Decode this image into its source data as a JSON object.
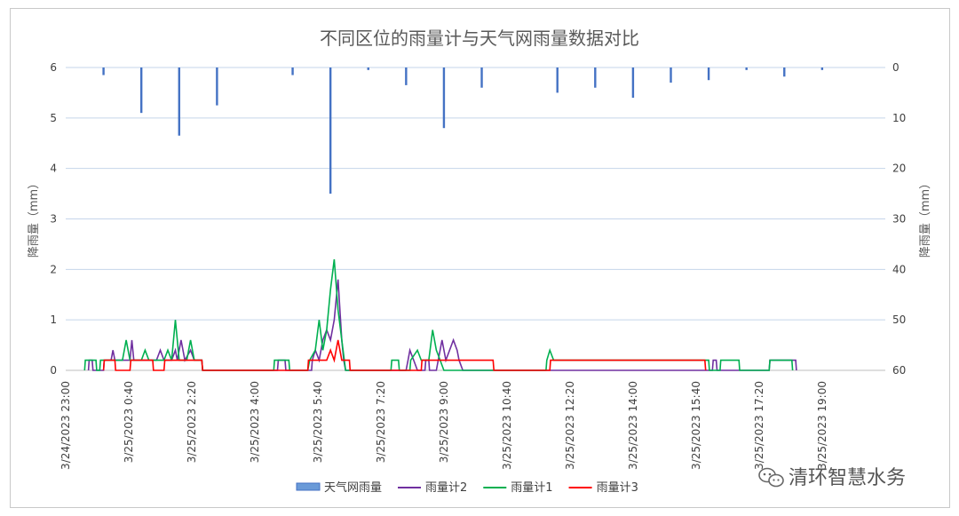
{
  "chart_data": {
    "type": "line",
    "title": "不同区位的雨量计与天气网雨量数据对比",
    "ylabel": "降雨量（mm）",
    "y2label": "降雨量（mm）",
    "ylim": [
      0,
      6
    ],
    "y2lim": [
      60,
      0
    ],
    "yticks": [
      "0",
      "1",
      "2",
      "3",
      "4",
      "5",
      "6"
    ],
    "y2ticks": [
      "60",
      "50",
      "40",
      "30",
      "20",
      "10",
      "0"
    ],
    "x_tick_labels": [
      "3/24/2023 23:00",
      "3/25/2023 0:40",
      "3/25/2023 2:20",
      "3/25/2023 4:00",
      "3/25/2023 5:40",
      "3/25/2023 7:20",
      "3/25/2023 9:00",
      "3/25/2023 10:40",
      "3/25/2023 12:20",
      "3/25/2023 14:00",
      "3/25/2023 15:40",
      "3/25/2023 17:20",
      "3/25/2023 19:00"
    ],
    "grid": true,
    "legend_position": "bottom",
    "series": [
      {
        "name": "天气网雨量",
        "kind": "bar",
        "axis": "right",
        "color": "#4472c4",
        "points": [
          [
            1.0,
            1.5
          ],
          [
            2.0,
            9
          ],
          [
            3.0,
            13.5
          ],
          [
            4.0,
            7.5
          ],
          [
            6.0,
            1.5
          ],
          [
            7.0,
            25
          ],
          [
            8.0,
            0.5
          ],
          [
            9.0,
            3.5
          ],
          [
            10.0,
            12
          ],
          [
            11.0,
            4
          ],
          [
            13.0,
            5
          ],
          [
            14.0,
            4
          ],
          [
            15.0,
            6
          ],
          [
            16.0,
            3
          ],
          [
            17.0,
            2.5
          ],
          [
            18.0,
            0.5
          ],
          [
            19.0,
            1.8
          ],
          [
            20.0,
            0.5
          ]
        ]
      },
      {
        "name": "雨量计2",
        "kind": "line",
        "axis": "left",
        "color": "#7030a0",
        "points": [
          [
            0.6,
            0
          ],
          [
            0.62,
            0.2
          ],
          [
            0.7,
            0.2
          ],
          [
            0.72,
            0
          ],
          [
            1.0,
            0
          ],
          [
            1.02,
            0.2
          ],
          [
            1.2,
            0.2
          ],
          [
            1.25,
            0.4
          ],
          [
            1.3,
            0.2
          ],
          [
            1.7,
            0.2
          ],
          [
            1.75,
            0.6
          ],
          [
            1.8,
            0.2
          ],
          [
            2.4,
            0.2
          ],
          [
            2.5,
            0.4
          ],
          [
            2.6,
            0.2
          ],
          [
            2.8,
            0.2
          ],
          [
            2.9,
            0.4
          ],
          [
            2.95,
            0.2
          ],
          [
            3.05,
            0.6
          ],
          [
            3.15,
            0.2
          ],
          [
            3.3,
            0.4
          ],
          [
            3.4,
            0.2
          ],
          [
            3.6,
            0.2
          ],
          [
            3.62,
            0
          ],
          [
            5.6,
            0
          ],
          [
            5.62,
            0.2
          ],
          [
            5.8,
            0.2
          ],
          [
            5.82,
            0
          ],
          [
            6.5,
            0
          ],
          [
            6.52,
            0.2
          ],
          [
            6.6,
            0.4
          ],
          [
            6.7,
            0.2
          ],
          [
            6.8,
            0.6
          ],
          [
            6.9,
            0.8
          ],
          [
            7.0,
            0.6
          ],
          [
            7.1,
            1.0
          ],
          [
            7.2,
            1.8
          ],
          [
            7.3,
            0.6
          ],
          [
            7.35,
            0.2
          ],
          [
            7.4,
            0
          ],
          [
            9.0,
            0
          ],
          [
            9.05,
            0.2
          ],
          [
            9.1,
            0.4
          ],
          [
            9.2,
            0.2
          ],
          [
            9.3,
            0
          ],
          [
            9.5,
            0
          ],
          [
            9.52,
            0.2
          ],
          [
            9.6,
            0.2
          ],
          [
            9.62,
            0
          ],
          [
            9.8,
            0
          ],
          [
            9.85,
            0.2
          ],
          [
            9.95,
            0.6
          ],
          [
            10.05,
            0.2
          ],
          [
            10.25,
            0.6
          ],
          [
            10.35,
            0.4
          ],
          [
            10.4,
            0.2
          ],
          [
            10.5,
            0
          ],
          [
            17.1,
            0
          ],
          [
            17.12,
            0.2
          ],
          [
            17.2,
            0.2
          ],
          [
            17.22,
            0
          ],
          [
            18.6,
            0
          ],
          [
            18.62,
            0.2
          ],
          [
            19.3,
            0.2
          ],
          [
            19.32,
            0
          ]
        ]
      },
      {
        "name": "雨量计1",
        "kind": "line",
        "axis": "left",
        "color": "#00b050",
        "points": [
          [
            0.5,
            0
          ],
          [
            0.52,
            0.2
          ],
          [
            0.8,
            0.2
          ],
          [
            0.82,
            0
          ],
          [
            0.9,
            0
          ],
          [
            0.92,
            0.2
          ],
          [
            1.5,
            0.2
          ],
          [
            1.6,
            0.6
          ],
          [
            1.7,
            0.2
          ],
          [
            2.0,
            0.2
          ],
          [
            2.1,
            0.4
          ],
          [
            2.2,
            0.2
          ],
          [
            2.6,
            0.2
          ],
          [
            2.7,
            0.4
          ],
          [
            2.8,
            0.2
          ],
          [
            2.9,
            1.0
          ],
          [
            3.0,
            0.2
          ],
          [
            3.2,
            0.2
          ],
          [
            3.3,
            0.6
          ],
          [
            3.4,
            0.2
          ],
          [
            3.6,
            0.2
          ],
          [
            3.62,
            0
          ],
          [
            5.5,
            0
          ],
          [
            5.52,
            0.2
          ],
          [
            5.9,
            0.2
          ],
          [
            5.92,
            0
          ],
          [
            6.4,
            0
          ],
          [
            6.45,
            0.2
          ],
          [
            6.6,
            0.4
          ],
          [
            6.7,
            1.0
          ],
          [
            6.8,
            0.4
          ],
          [
            6.9,
            0.8
          ],
          [
            7.0,
            1.6
          ],
          [
            7.1,
            2.2
          ],
          [
            7.2,
            1.2
          ],
          [
            7.3,
            0.6
          ],
          [
            7.4,
            0
          ],
          [
            8.6,
            0
          ],
          [
            8.62,
            0.2
          ],
          [
            8.8,
            0.2
          ],
          [
            8.82,
            0
          ],
          [
            9.1,
            0
          ],
          [
            9.12,
            0.2
          ],
          [
            9.3,
            0.4
          ],
          [
            9.4,
            0.2
          ],
          [
            9.6,
            0.2
          ],
          [
            9.7,
            0.8
          ],
          [
            9.8,
            0.4
          ],
          [
            9.9,
            0.2
          ],
          [
            10.0,
            0
          ],
          [
            12.7,
            0
          ],
          [
            12.72,
            0.2
          ],
          [
            12.8,
            0.4
          ],
          [
            12.9,
            0.2
          ],
          [
            17.0,
            0.2
          ],
          [
            17.02,
            0
          ],
          [
            17.3,
            0
          ],
          [
            17.32,
            0.2
          ],
          [
            17.8,
            0.2
          ],
          [
            17.82,
            0
          ],
          [
            18.6,
            0
          ],
          [
            18.62,
            0.2
          ],
          [
            19.2,
            0.2
          ],
          [
            19.22,
            0
          ]
        ]
      },
      {
        "name": "雨量计3",
        "kind": "line",
        "axis": "left",
        "color": "#ff0000",
        "points": [
          [
            1.0,
            0
          ],
          [
            1.02,
            0.2
          ],
          [
            1.3,
            0.2
          ],
          [
            1.32,
            0
          ],
          [
            1.7,
            0
          ],
          [
            1.72,
            0.2
          ],
          [
            2.3,
            0.2
          ],
          [
            2.32,
            0
          ],
          [
            2.6,
            0
          ],
          [
            2.62,
            0.2
          ],
          [
            3.6,
            0.2
          ],
          [
            3.62,
            0
          ],
          [
            6.4,
            0
          ],
          [
            6.42,
            0.2
          ],
          [
            6.9,
            0.2
          ],
          [
            7.0,
            0.4
          ],
          [
            7.1,
            0.2
          ],
          [
            7.2,
            0.6
          ],
          [
            7.3,
            0.2
          ],
          [
            7.5,
            0.2
          ],
          [
            7.52,
            0
          ],
          [
            9.4,
            0
          ],
          [
            9.42,
            0.2
          ],
          [
            11.3,
            0.2
          ],
          [
            11.32,
            0
          ],
          [
            12.8,
            0
          ],
          [
            12.82,
            0.2
          ],
          [
            16.9,
            0.2
          ],
          [
            16.92,
            0
          ]
        ]
      }
    ]
  },
  "watermark": {
    "text": "清环智慧水务",
    "icon": "wechat-icon"
  }
}
